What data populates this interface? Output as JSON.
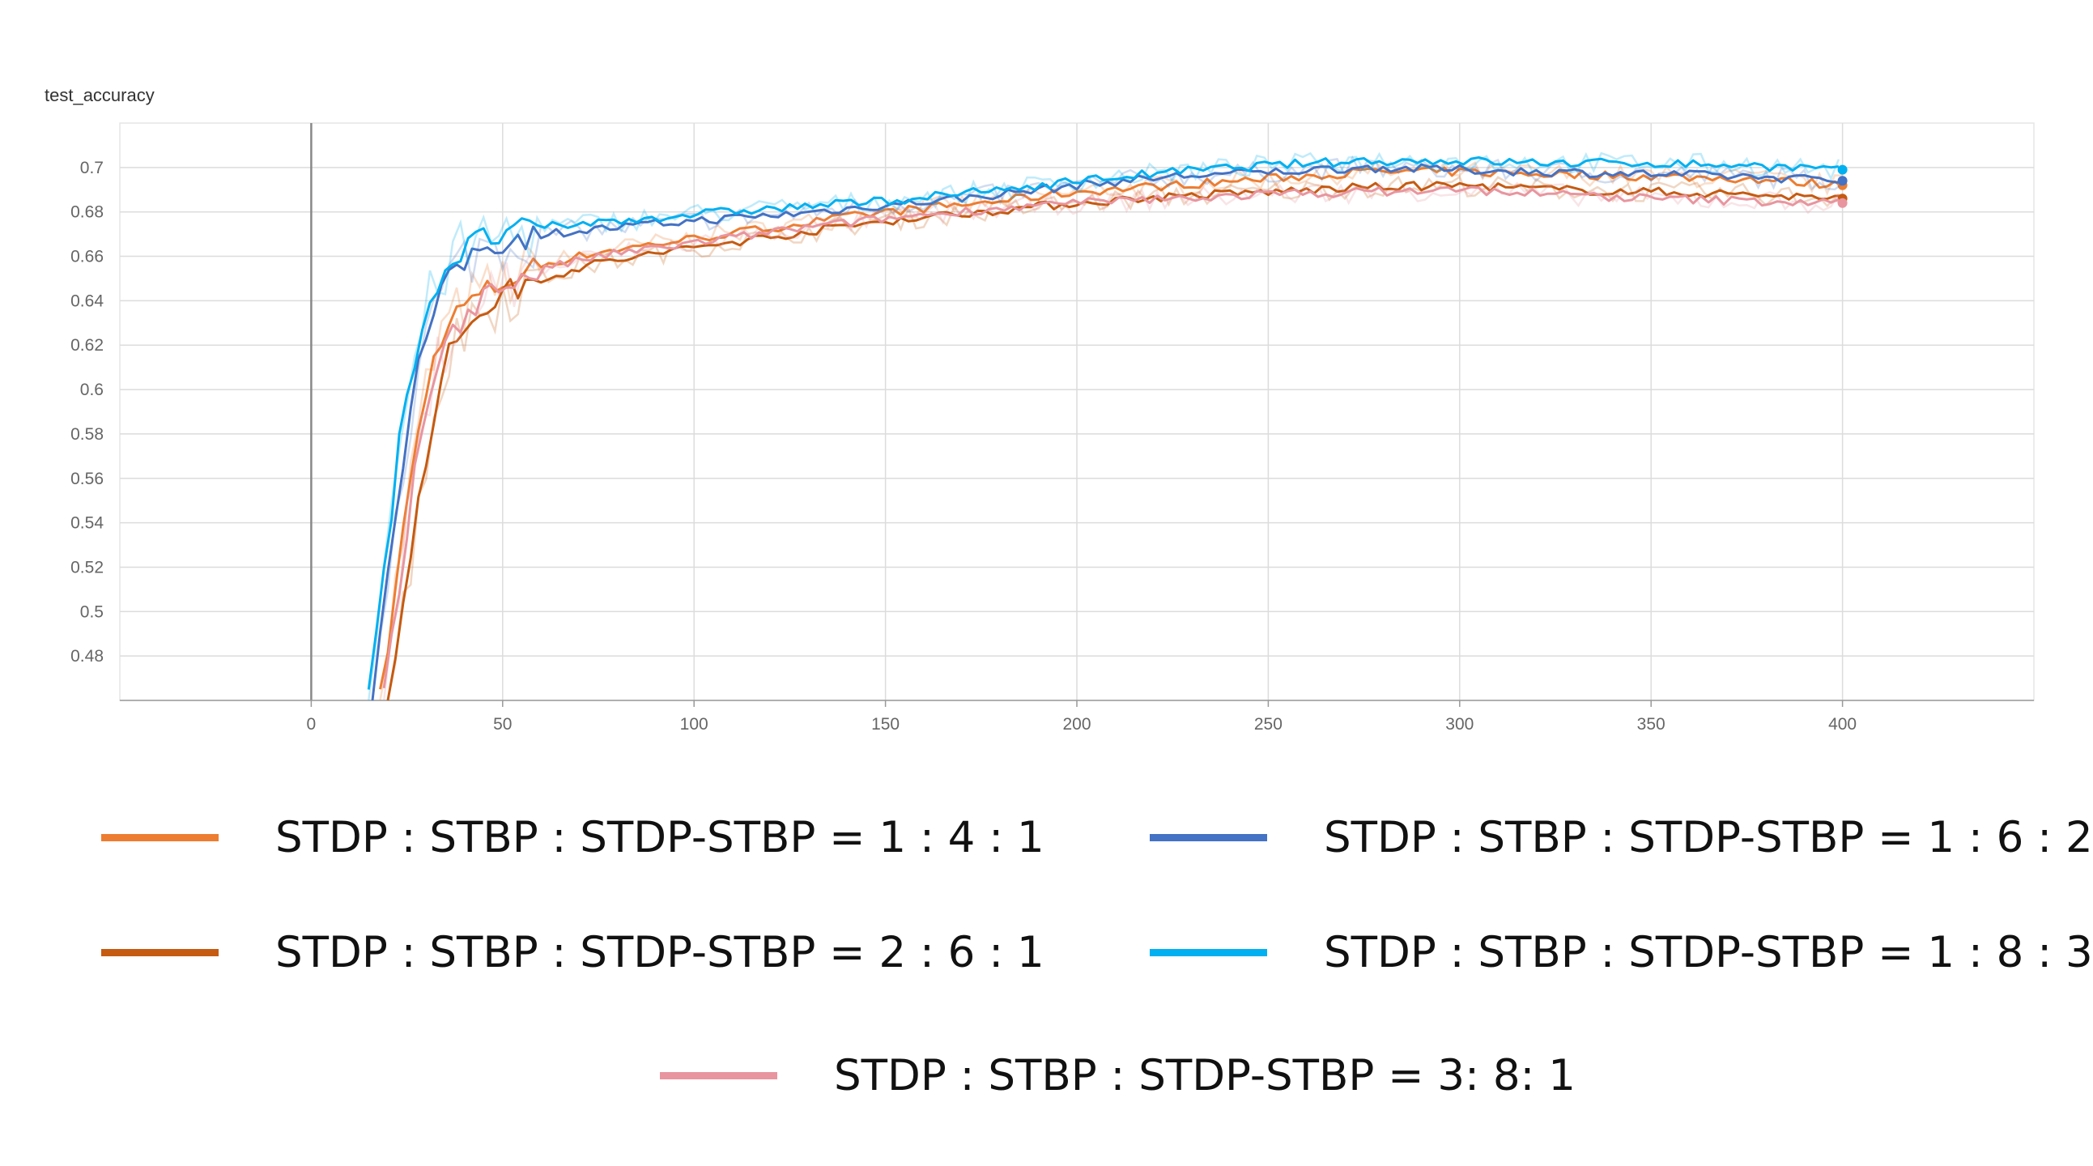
{
  "chart_data": {
    "type": "line",
    "title": "test_accuracy",
    "xlabel": "",
    "ylabel": "",
    "xlim": [
      -50,
      450
    ],
    "ylim": [
      0.46,
      0.72
    ],
    "x_ticks": [
      0,
      50,
      100,
      150,
      200,
      250,
      300,
      350,
      400
    ],
    "y_ticks": [
      0.48,
      0.5,
      0.52,
      0.54,
      0.56,
      0.58,
      0.6,
      0.62,
      0.64,
      0.66,
      0.68,
      0.7
    ],
    "grid": true,
    "x_range": [
      18,
      400
    ],
    "series": [
      {
        "name": "STDP : STBP : STDP-STBP = 1 : 4 : 1",
        "color": "#ed7d31",
        "points": [
          [
            18,
            0.46
          ],
          [
            22,
            0.51
          ],
          [
            26,
            0.56
          ],
          [
            30,
            0.6
          ],
          [
            34,
            0.625
          ],
          [
            40,
            0.638
          ],
          [
            50,
            0.648
          ],
          [
            60,
            0.656
          ],
          [
            75,
            0.662
          ],
          [
            100,
            0.668
          ],
          [
            125,
            0.674
          ],
          [
            150,
            0.68
          ],
          [
            175,
            0.684
          ],
          [
            200,
            0.689
          ],
          [
            225,
            0.692
          ],
          [
            250,
            0.695
          ],
          [
            275,
            0.698
          ],
          [
            300,
            0.698
          ],
          [
            325,
            0.697
          ],
          [
            350,
            0.696
          ],
          [
            375,
            0.695
          ],
          [
            400,
            0.692
          ]
        ]
      },
      {
        "name": "STDP : STBP : STDP-STBP = 1 : 6 : 2",
        "color": "#4472c4",
        "points": [
          [
            16,
            0.46
          ],
          [
            20,
            0.52
          ],
          [
            24,
            0.57
          ],
          [
            28,
            0.61
          ],
          [
            32,
            0.635
          ],
          [
            38,
            0.655
          ],
          [
            45,
            0.665
          ],
          [
            60,
            0.67
          ],
          [
            80,
            0.673
          ],
          [
            100,
            0.676
          ],
          [
            125,
            0.679
          ],
          [
            150,
            0.683
          ],
          [
            175,
            0.687
          ],
          [
            200,
            0.692
          ],
          [
            225,
            0.696
          ],
          [
            250,
            0.698
          ],
          [
            275,
            0.7
          ],
          [
            300,
            0.699
          ],
          [
            325,
            0.698
          ],
          [
            350,
            0.697
          ],
          [
            375,
            0.696
          ],
          [
            400,
            0.694
          ]
        ]
      },
      {
        "name": "STDP : STBP : STDP-STBP = 2 : 6 : 1",
        "color": "#c55a11",
        "points": [
          [
            20,
            0.46
          ],
          [
            24,
            0.5
          ],
          [
            28,
            0.55
          ],
          [
            32,
            0.59
          ],
          [
            36,
            0.615
          ],
          [
            42,
            0.633
          ],
          [
            50,
            0.643
          ],
          [
            60,
            0.65
          ],
          [
            75,
            0.657
          ],
          [
            100,
            0.664
          ],
          [
            125,
            0.67
          ],
          [
            150,
            0.676
          ],
          [
            175,
            0.68
          ],
          [
            200,
            0.684
          ],
          [
            225,
            0.687
          ],
          [
            250,
            0.689
          ],
          [
            275,
            0.691
          ],
          [
            300,
            0.692
          ],
          [
            325,
            0.69
          ],
          [
            350,
            0.689
          ],
          [
            375,
            0.688
          ],
          [
            400,
            0.686
          ]
        ]
      },
      {
        "name": "STDP : STBP : STDP-STBP = 1 : 8 : 3",
        "color": "#00b0f0",
        "points": [
          [
            15,
            0.46
          ],
          [
            19,
            0.52
          ],
          [
            23,
            0.575
          ],
          [
            27,
            0.615
          ],
          [
            31,
            0.64
          ],
          [
            36,
            0.658
          ],
          [
            45,
            0.668
          ],
          [
            60,
            0.673
          ],
          [
            80,
            0.676
          ],
          [
            100,
            0.679
          ],
          [
            125,
            0.682
          ],
          [
            150,
            0.685
          ],
          [
            175,
            0.689
          ],
          [
            200,
            0.694
          ],
          [
            225,
            0.698
          ],
          [
            250,
            0.701
          ],
          [
            275,
            0.703
          ],
          [
            300,
            0.703
          ],
          [
            325,
            0.702
          ],
          [
            350,
            0.702
          ],
          [
            375,
            0.701
          ],
          [
            400,
            0.699
          ]
        ]
      },
      {
        "name": "STDP : STBP : STDP-STBP = 3: 8: 1",
        "color": "#e8959f",
        "points": [
          [
            19,
            0.46
          ],
          [
            23,
            0.51
          ],
          [
            27,
            0.56
          ],
          [
            31,
            0.6
          ],
          [
            35,
            0.622
          ],
          [
            42,
            0.638
          ],
          [
            50,
            0.647
          ],
          [
            60,
            0.654
          ],
          [
            75,
            0.66
          ],
          [
            100,
            0.666
          ],
          [
            125,
            0.672
          ],
          [
            150,
            0.677
          ],
          [
            175,
            0.681
          ],
          [
            200,
            0.684
          ],
          [
            225,
            0.686
          ],
          [
            250,
            0.688
          ],
          [
            275,
            0.689
          ],
          [
            300,
            0.69
          ],
          [
            325,
            0.688
          ],
          [
            350,
            0.686
          ],
          [
            375,
            0.685
          ],
          [
            400,
            0.684
          ]
        ]
      }
    ],
    "legend_placement": "bottom"
  }
}
